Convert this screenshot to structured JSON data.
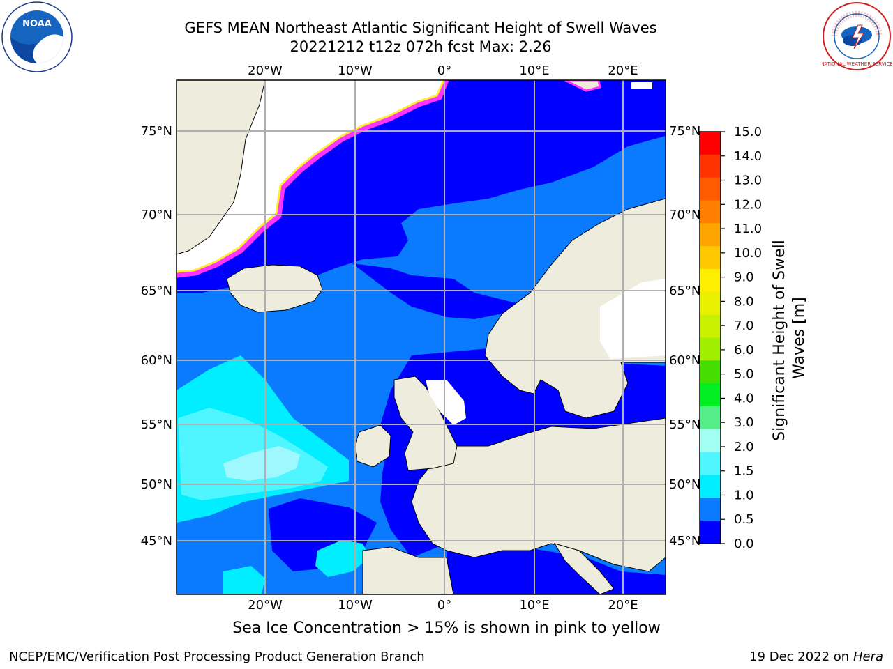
{
  "header": {
    "title_line1": "GEFS MEAN Northeast Atlantic Significant Height of Swell Waves",
    "title_line2": "20221212 t12z 072h fcst   Max: 2.26"
  },
  "map": {
    "lon_labels_top": [
      "20°W",
      "10°W",
      "0°",
      "10°E",
      "20°E"
    ],
    "lon_labels_bottom": [
      "20°W",
      "10°W",
      "0°",
      "10°E",
      "20°E"
    ],
    "lat_labels_left": [
      "75°N",
      "70°N",
      "65°N",
      "60°N",
      "55°N",
      "50°N",
      "45°N"
    ],
    "lat_labels_right": [
      "75°N",
      "70°N",
      "65°N",
      "60°N",
      "55°N",
      "50°N",
      "45°N"
    ],
    "colors": {
      "land": "#eeecdc",
      "wave_0_0.5": "#0000ff",
      "wave_0.5_1.0": "#0a7aff",
      "wave_1.0_1.5": "#00eeff",
      "wave_1.5_2.0": "#4ff5ff",
      "wave_2.0_2.5": "#a0f8ff",
      "sea_ice_low": "#ff33ff",
      "sea_ice_high": "#ffee33",
      "grid": "#b0b0b0"
    }
  },
  "colorbar": {
    "label": "Significant Height of Swell Waves [m]",
    "ticks": [
      "15.0",
      "14.0",
      "13.0",
      "12.0",
      "11.0",
      "10.0",
      "9.0",
      "8.0",
      "7.0",
      "6.0",
      "5.0",
      "4.0",
      "3.0",
      "2.0",
      "1.5",
      "1.0",
      "0.5",
      "0.0"
    ],
    "colors": [
      "#ff0000",
      "#ff3300",
      "#ff5a00",
      "#ff8000",
      "#ffa500",
      "#ffc800",
      "#ffee00",
      "#e8f000",
      "#c8f000",
      "#a0ee00",
      "#44dd00",
      "#00ee22",
      "#55ee88",
      "#a0fff0",
      "#4ff5ff",
      "#00eeff",
      "#0a7aff",
      "#0000ff"
    ]
  },
  "caption": "Sea Ice Concentration > 15% is shown in pink to yellow",
  "footer": {
    "left": "NCEP/EMC/Verification Post Processing Product Generation Branch",
    "right_date": "19 Dec 2022 on",
    "right_machine": "Hera"
  },
  "logos": {
    "noaa_text": "NOAA",
    "nws_text": "NATIONAL WEATHER SERVICE"
  }
}
